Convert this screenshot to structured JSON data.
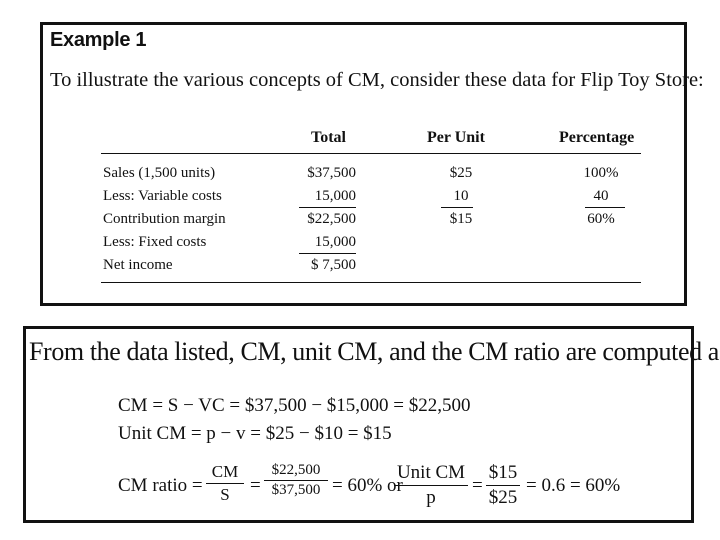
{
  "example": {
    "heading": "Example 1",
    "intro": "To illustrate the various concepts of CM, consider these data for Flip Toy Store:",
    "columns": [
      "Total",
      "Per Unit",
      "Percentage"
    ],
    "rows": [
      {
        "label": "Sales (1,500 units)",
        "total": "$37,500",
        "per_unit": "$25",
        "percentage": "100%"
      },
      {
        "label": "Less: Variable costs",
        "total": "15,000",
        "per_unit": "10",
        "percentage": "40"
      },
      {
        "label": "Contribution margin",
        "total": "$22,500",
        "per_unit": "$15",
        "percentage": "60%"
      },
      {
        "label": "Less: Fixed costs",
        "total": "15,000",
        "per_unit": "",
        "percentage": ""
      },
      {
        "label": "Net income",
        "total": "$ 7,500",
        "per_unit": "",
        "percentage": ""
      }
    ]
  },
  "computation": {
    "intro": "From the data listed, CM, unit CM, and the CM ratio are computed as:",
    "cm_equation": "CM = S − VC = $37,500 − $15,000 = $22,500",
    "unit_cm_equation": "Unit CM = p − v = $25 − $10 = $15",
    "ratio": {
      "label": "CM ratio =",
      "frac1_num": "CM",
      "frac1_den": "S",
      "eq1": "=",
      "frac2_num": "$22,500",
      "frac2_den": "$37,500",
      "result1": "= 60% or",
      "frac3_num": "Unit CM",
      "frac3_den": "p",
      "eq2": "=",
      "frac4_num": "$15",
      "frac4_den": "$25",
      "result2": "= 0.6 = 60%"
    }
  }
}
